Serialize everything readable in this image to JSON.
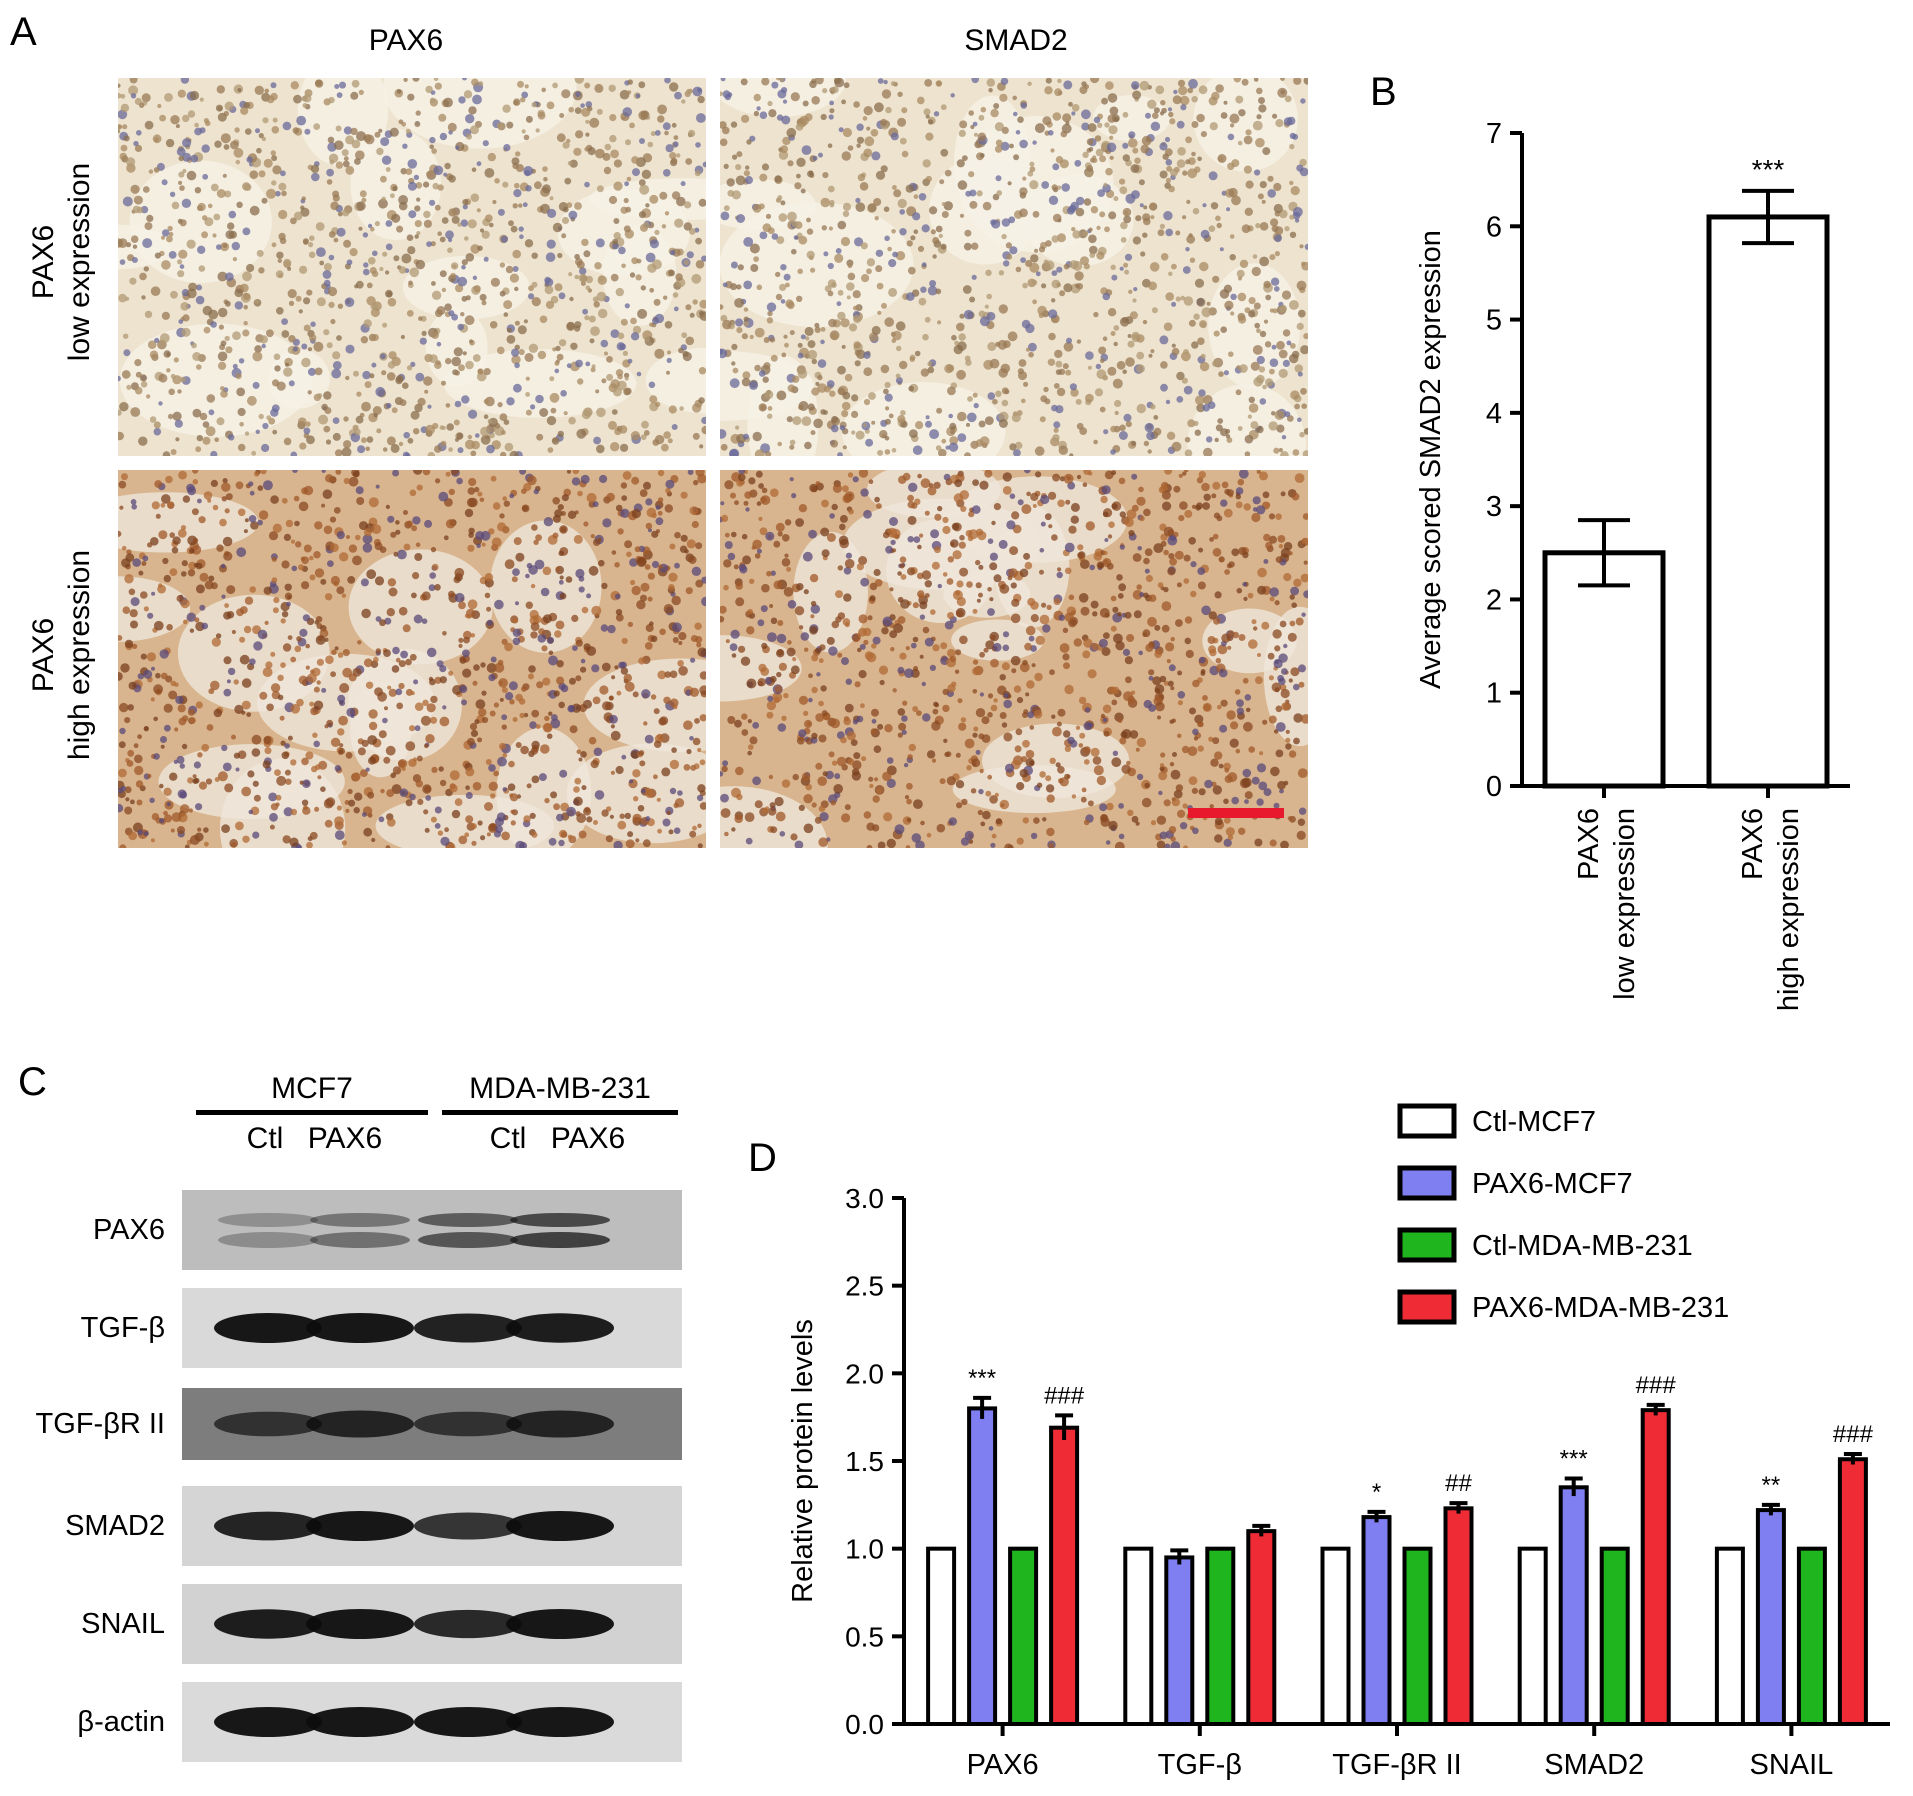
{
  "panels": {
    "a": {
      "letter": "A",
      "col_titles": [
        "PAX6",
        "SMAD2"
      ],
      "rows": [
        {
          "line1": "PAX6",
          "line2": "low expression",
          "stain": "low"
        },
        {
          "line1": "PAX6",
          "line2": "high expression",
          "stain": "high"
        }
      ],
      "scale_bar_color": "#e8192c"
    },
    "b": {
      "letter": "B"
    },
    "c": {
      "letter": "C",
      "cell_lines": [
        "MCF7",
        "MDA-MB-231"
      ],
      "lanes": [
        "Ctl",
        "PAX6",
        "Ctl",
        "PAX6"
      ],
      "blots": [
        {
          "label": "PAX6",
          "bg": "#bdbdbd",
          "intensity": [
            0.35,
            0.55,
            0.75,
            0.9
          ],
          "double": true
        },
        {
          "label": "TGF-β",
          "bg": "#d9d9d9",
          "intensity": [
            1.0,
            1.0,
            0.92,
            0.95
          ],
          "double": false
        },
        {
          "label": "TGF-βR II",
          "bg": "#7d7d7d",
          "intensity": [
            0.55,
            0.75,
            0.55,
            0.75
          ],
          "double": false
        },
        {
          "label": "SMAD2",
          "bg": "#d5d5d5",
          "intensity": [
            0.9,
            1.0,
            0.75,
            1.0
          ],
          "double": false
        },
        {
          "label": "SNAIL",
          "bg": "#d2d2d2",
          "intensity": [
            0.95,
            1.0,
            0.85,
            1.0
          ],
          "double": false
        },
        {
          "label": "β-actin",
          "bg": "#dadada",
          "intensity": [
            1.0,
            1.0,
            1.0,
            1.0
          ],
          "double": false
        }
      ]
    },
    "d": {
      "letter": "D"
    }
  },
  "chart_data": [
    {
      "type": "bar",
      "panel": "B",
      "categories": [
        {
          "line1": "PAX6",
          "line2": "low expression"
        },
        {
          "line1": "PAX6",
          "line2": "high expression"
        }
      ],
      "values": [
        2.5,
        6.1
      ],
      "errors": [
        0.35,
        0.28
      ],
      "significance": [
        "",
        "***"
      ],
      "ylabel": "Average scored SMAD2 expression",
      "ylim": [
        0,
        7
      ],
      "yticks": [
        "0",
        "1",
        "2",
        "3",
        "4",
        "5",
        "6",
        "7"
      ],
      "bar_color": "#ffffff"
    },
    {
      "type": "bar",
      "panel": "D",
      "categories": [
        "PAX6",
        "TGF-β",
        "TGF-βR II",
        "SMAD2",
        "SNAIL"
      ],
      "series": [
        {
          "name": "Ctl-MCF7",
          "color": "#ffffff",
          "values": [
            1.0,
            1.0,
            1.0,
            1.0,
            1.0
          ],
          "errors": [
            0,
            0,
            0,
            0,
            0
          ],
          "marks": [
            "",
            "",
            "",
            "",
            ""
          ]
        },
        {
          "name": "PAX6-MCF7",
          "color": "#7f7ff2",
          "values": [
            1.8,
            0.95,
            1.18,
            1.35,
            1.22
          ],
          "errors": [
            0.06,
            0.04,
            0.03,
            0.05,
            0.03
          ],
          "marks": [
            "***",
            "",
            "*",
            "***",
            "**"
          ]
        },
        {
          "name": "Ctl-MDA-MB-231",
          "color": "#1fb51f",
          "values": [
            1.0,
            1.0,
            1.0,
            1.0,
            1.0
          ],
          "errors": [
            0,
            0,
            0,
            0,
            0
          ],
          "marks": [
            "",
            "",
            "",
            "",
            ""
          ]
        },
        {
          "name": "PAX6-MDA-MB-231",
          "color": "#ef2b35",
          "values": [
            1.69,
            1.1,
            1.23,
            1.79,
            1.51
          ],
          "errors": [
            0.07,
            0.03,
            0.03,
            0.03,
            0.03
          ],
          "marks": [
            "###",
            "",
            "##",
            "###",
            "###"
          ]
        }
      ],
      "ylabel": "Relative protein levels",
      "ylim": [
        0,
        3.0
      ],
      "yticks": [
        "0.0",
        "0.5",
        "1.0",
        "1.5",
        "2.0",
        "2.5",
        "3.0"
      ],
      "legend_position": "top-right"
    }
  ]
}
